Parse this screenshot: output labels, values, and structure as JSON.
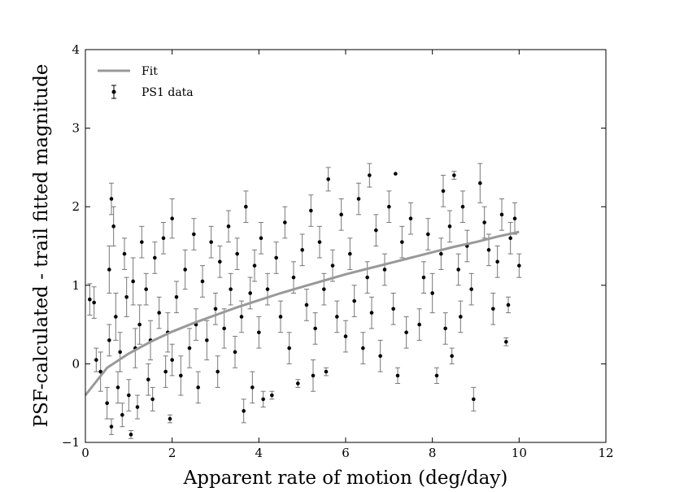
{
  "chart_data": {
    "type": "scatter",
    "title": "",
    "xlabel": "Apparent rate of motion (deg/day)",
    "ylabel": "PSF-calculated - trail fitted magnitude",
    "xlim": [
      0,
      12
    ],
    "ylim": [
      -1,
      4
    ],
    "xticks": [
      "0",
      "2",
      "4",
      "6",
      "8",
      "10",
      "12"
    ],
    "yticks": [
      "−1",
      "0",
      "1",
      "2",
      "3",
      "4"
    ],
    "grid": false,
    "legend": {
      "placement": "top-left",
      "entries": [
        "Fit",
        "PS1 data"
      ]
    },
    "colors": {
      "fit": "#999999",
      "data": "#000000",
      "errorbar": "#777777"
    },
    "series": [
      {
        "name": "Fit",
        "kind": "line",
        "x": [
          0.0,
          0.5,
          1.0,
          1.5,
          2.0,
          2.5,
          3.0,
          3.5,
          4.0,
          4.5,
          5.0,
          5.5,
          6.0,
          6.5,
          7.0,
          7.5,
          8.0,
          8.5,
          9.0,
          9.5,
          10.0
        ],
        "y": [
          -0.4,
          -0.05,
          0.13,
          0.28,
          0.41,
          0.52,
          0.62,
          0.72,
          0.81,
          0.9,
          0.98,
          1.06,
          1.14,
          1.21,
          1.28,
          1.35,
          1.42,
          1.49,
          1.55,
          1.62,
          1.68
        ]
      },
      {
        "name": "PS1 data",
        "kind": "errorbar-scatter",
        "points": [
          {
            "x": 0.1,
            "y": 0.82,
            "err": 0.2
          },
          {
            "x": 0.2,
            "y": 0.78,
            "err": 0.2
          },
          {
            "x": 0.25,
            "y": 0.05,
            "err": 0.15
          },
          {
            "x": 0.35,
            "y": -0.1,
            "err": 0.25
          },
          {
            "x": 0.5,
            "y": -0.5,
            "err": 0.2
          },
          {
            "x": 0.55,
            "y": 1.2,
            "err": 0.3
          },
          {
            "x": 0.55,
            "y": 0.3,
            "err": 0.2
          },
          {
            "x": 0.6,
            "y": 2.1,
            "err": 0.2
          },
          {
            "x": 0.6,
            "y": -0.8,
            "err": 0.1
          },
          {
            "x": 0.65,
            "y": 1.75,
            "err": 0.25
          },
          {
            "x": 0.7,
            "y": 0.6,
            "err": 0.3
          },
          {
            "x": 0.75,
            "y": -0.3,
            "err": 0.2
          },
          {
            "x": 0.8,
            "y": 0.15,
            "err": 0.25
          },
          {
            "x": 0.85,
            "y": -0.65,
            "err": 0.15
          },
          {
            "x": 0.9,
            "y": 1.4,
            "err": 0.2
          },
          {
            "x": 0.95,
            "y": 0.85,
            "err": 0.25
          },
          {
            "x": 1.0,
            "y": -0.4,
            "err": 0.2
          },
          {
            "x": 1.05,
            "y": -0.9,
            "err": 0.05
          },
          {
            "x": 1.1,
            "y": 1.05,
            "err": 0.3
          },
          {
            "x": 1.15,
            "y": 0.2,
            "err": 0.25
          },
          {
            "x": 1.2,
            "y": -0.55,
            "err": 0.15
          },
          {
            "x": 1.25,
            "y": 0.5,
            "err": 0.25
          },
          {
            "x": 1.3,
            "y": 1.55,
            "err": 0.2
          },
          {
            "x": 1.4,
            "y": 0.95,
            "err": 0.2
          },
          {
            "x": 1.45,
            "y": -0.2,
            "err": 0.2
          },
          {
            "x": 1.5,
            "y": 0.3,
            "err": 0.25
          },
          {
            "x": 1.55,
            "y": -0.45,
            "err": 0.15
          },
          {
            "x": 1.6,
            "y": 1.35,
            "err": 0.2
          },
          {
            "x": 1.7,
            "y": 0.65,
            "err": 0.2
          },
          {
            "x": 1.8,
            "y": 1.6,
            "err": 0.2
          },
          {
            "x": 1.85,
            "y": -0.1,
            "err": 0.2
          },
          {
            "x": 1.9,
            "y": 0.4,
            "err": 0.25
          },
          {
            "x": 1.95,
            "y": -0.7,
            "err": 0.05
          },
          {
            "x": 2.0,
            "y": 0.05,
            "err": 0.2
          },
          {
            "x": 2.0,
            "y": 1.85,
            "err": 0.25
          },
          {
            "x": 2.1,
            "y": 0.85,
            "err": 0.2
          },
          {
            "x": 2.2,
            "y": -0.15,
            "err": 0.25
          },
          {
            "x": 2.3,
            "y": 1.2,
            "err": 0.25
          },
          {
            "x": 2.4,
            "y": 0.2,
            "err": 0.25
          },
          {
            "x": 2.5,
            "y": 1.65,
            "err": 0.2
          },
          {
            "x": 2.55,
            "y": 0.5,
            "err": 0.2
          },
          {
            "x": 2.6,
            "y": -0.3,
            "err": 0.2
          },
          {
            "x": 2.7,
            "y": 1.05,
            "err": 0.2
          },
          {
            "x": 2.8,
            "y": 0.3,
            "err": 0.25
          },
          {
            "x": 2.9,
            "y": 1.55,
            "err": 0.2
          },
          {
            "x": 3.0,
            "y": 0.7,
            "err": 0.2
          },
          {
            "x": 3.05,
            "y": -0.1,
            "err": 0.2
          },
          {
            "x": 3.1,
            "y": 1.3,
            "err": 0.2
          },
          {
            "x": 3.2,
            "y": 0.45,
            "err": 0.25
          },
          {
            "x": 3.3,
            "y": 1.75,
            "err": 0.2
          },
          {
            "x": 3.35,
            "y": 0.95,
            "err": 0.2
          },
          {
            "x": 3.45,
            "y": 0.15,
            "err": 0.2
          },
          {
            "x": 3.5,
            "y": 1.4,
            "err": 0.2
          },
          {
            "x": 3.6,
            "y": 0.6,
            "err": 0.2
          },
          {
            "x": 3.65,
            "y": -0.6,
            "err": 0.15
          },
          {
            "x": 3.7,
            "y": 2.0,
            "err": 0.2
          },
          {
            "x": 3.8,
            "y": 0.9,
            "err": 0.2
          },
          {
            "x": 3.85,
            "y": -0.3,
            "err": 0.2
          },
          {
            "x": 3.9,
            "y": 1.25,
            "err": 0.2
          },
          {
            "x": 4.0,
            "y": 0.4,
            "err": 0.2
          },
          {
            "x": 4.05,
            "y": 1.6,
            "err": 0.2
          },
          {
            "x": 4.1,
            "y": -0.45,
            "err": 0.1
          },
          {
            "x": 4.2,
            "y": 0.95,
            "err": 0.2
          },
          {
            "x": 4.3,
            "y": -0.4,
            "err": 0.05
          },
          {
            "x": 4.4,
            "y": 1.35,
            "err": 0.2
          },
          {
            "x": 4.5,
            "y": 0.6,
            "err": 0.2
          },
          {
            "x": 4.6,
            "y": 1.8,
            "err": 0.2
          },
          {
            "x": 4.7,
            "y": 0.2,
            "err": 0.2
          },
          {
            "x": 4.8,
            "y": 1.1,
            "err": 0.2
          },
          {
            "x": 4.9,
            "y": -0.25,
            "err": 0.05
          },
          {
            "x": 5.0,
            "y": 1.45,
            "err": 0.2
          },
          {
            "x": 5.1,
            "y": 0.75,
            "err": 0.2
          },
          {
            "x": 5.2,
            "y": 1.95,
            "err": 0.2
          },
          {
            "x": 5.25,
            "y": -0.15,
            "err": 0.2
          },
          {
            "x": 5.3,
            "y": 0.45,
            "err": 0.2
          },
          {
            "x": 5.4,
            "y": 1.55,
            "err": 0.2
          },
          {
            "x": 5.5,
            "y": 0.95,
            "err": 0.2
          },
          {
            "x": 5.55,
            "y": -0.1,
            "err": 0.05
          },
          {
            "x": 5.6,
            "y": 2.35,
            "err": 0.15
          },
          {
            "x": 5.7,
            "y": 1.25,
            "err": 0.2
          },
          {
            "x": 5.8,
            "y": 0.6,
            "err": 0.2
          },
          {
            "x": 5.9,
            "y": 1.9,
            "err": 0.2
          },
          {
            "x": 6.0,
            "y": 0.35,
            "err": 0.2
          },
          {
            "x": 6.1,
            "y": 1.4,
            "err": 0.2
          },
          {
            "x": 6.2,
            "y": 0.8,
            "err": 0.2
          },
          {
            "x": 6.3,
            "y": 2.1,
            "err": 0.2
          },
          {
            "x": 6.4,
            "y": 0.2,
            "err": 0.2
          },
          {
            "x": 6.5,
            "y": 1.1,
            "err": 0.2
          },
          {
            "x": 6.55,
            "y": 2.4,
            "err": 0.15
          },
          {
            "x": 6.6,
            "y": 0.65,
            "err": 0.2
          },
          {
            "x": 6.7,
            "y": 1.7,
            "err": 0.2
          },
          {
            "x": 6.8,
            "y": 0.1,
            "err": 0.2
          },
          {
            "x": 6.9,
            "y": 1.2,
            "err": 0.2
          },
          {
            "x": 7.0,
            "y": 2.0,
            "err": 0.2
          },
          {
            "x": 7.1,
            "y": 0.7,
            "err": 0.2
          },
          {
            "x": 7.15,
            "y": 2.42,
            "err": 0.0
          },
          {
            "x": 7.2,
            "y": -0.15,
            "err": 0.1
          },
          {
            "x": 7.3,
            "y": 1.55,
            "err": 0.2
          },
          {
            "x": 7.4,
            "y": 0.4,
            "err": 0.2
          },
          {
            "x": 7.5,
            "y": 1.85,
            "err": 0.2
          },
          {
            "x": 7.7,
            "y": 0.5,
            "err": 0.2
          },
          {
            "x": 7.8,
            "y": 1.1,
            "err": 0.2
          },
          {
            "x": 7.9,
            "y": 1.65,
            "err": 0.2
          },
          {
            "x": 8.0,
            "y": 0.9,
            "err": 0.25
          },
          {
            "x": 8.1,
            "y": -0.15,
            "err": 0.1
          },
          {
            "x": 8.2,
            "y": 1.4,
            "err": 0.2
          },
          {
            "x": 8.25,
            "y": 2.2,
            "err": 0.2
          },
          {
            "x": 8.3,
            "y": 0.45,
            "err": 0.2
          },
          {
            "x": 8.4,
            "y": 1.75,
            "err": 0.2
          },
          {
            "x": 8.45,
            "y": 0.1,
            "err": 0.1
          },
          {
            "x": 8.5,
            "y": 2.4,
            "err": 0.05
          },
          {
            "x": 8.6,
            "y": 1.2,
            "err": 0.2
          },
          {
            "x": 8.65,
            "y": 0.6,
            "err": 0.2
          },
          {
            "x": 8.7,
            "y": 2.0,
            "err": 0.2
          },
          {
            "x": 8.8,
            "y": 1.5,
            "err": 0.2
          },
          {
            "x": 8.9,
            "y": 0.95,
            "err": 0.2
          },
          {
            "x": 8.95,
            "y": -0.45,
            "err": 0.15
          },
          {
            "x": 9.1,
            "y": 2.3,
            "err": 0.25
          },
          {
            "x": 9.2,
            "y": 1.8,
            "err": 0.2
          },
          {
            "x": 9.3,
            "y": 1.45,
            "err": 0.2
          },
          {
            "x": 9.4,
            "y": 0.7,
            "err": 0.2
          },
          {
            "x": 9.5,
            "y": 1.3,
            "err": 0.2
          },
          {
            "x": 9.6,
            "y": 1.9,
            "err": 0.2
          },
          {
            "x": 9.7,
            "y": 0.28,
            "err": 0.05
          },
          {
            "x": 9.75,
            "y": 0.75,
            "err": 0.1
          },
          {
            "x": 9.8,
            "y": 1.6,
            "err": 0.2
          },
          {
            "x": 9.9,
            "y": 1.85,
            "err": 0.2
          },
          {
            "x": 10.0,
            "y": 1.25,
            "err": 0.15
          }
        ]
      }
    ]
  }
}
